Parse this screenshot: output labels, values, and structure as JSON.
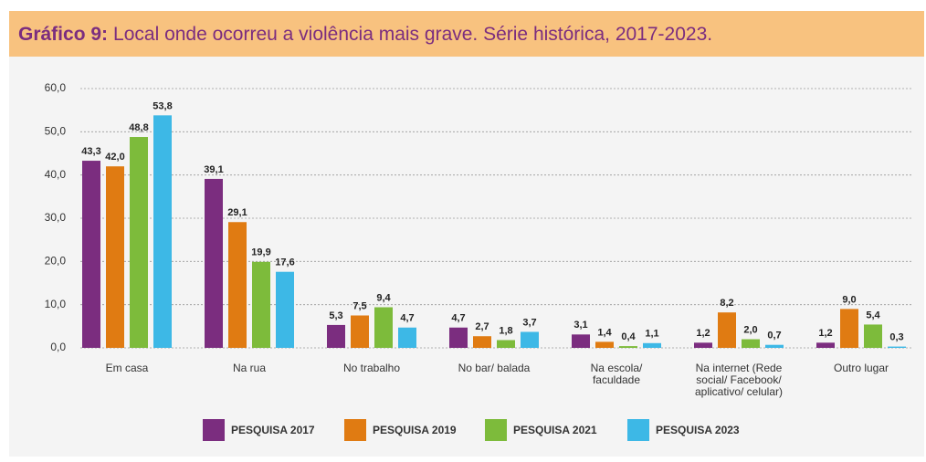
{
  "chart_data": {
    "type": "bar",
    "title_label": "Gráfico 9:",
    "title": "Local onde ocorreu a violência mais grave. Série histórica, 2017-2023.",
    "categories": [
      [
        "Em casa"
      ],
      [
        "Na rua"
      ],
      [
        "No trabalho"
      ],
      [
        "No bar/ balada"
      ],
      [
        "Na escola/",
        "faculdade"
      ],
      [
        "Na internet (Rede",
        "social/ Facebook/",
        "aplicativo/ celular)"
      ],
      [
        "Outro lugar"
      ]
    ],
    "series": [
      {
        "name": "PESQUISA 2017",
        "color": "#7b2d7f",
        "values": [
          43.3,
          39.1,
          5.3,
          4.7,
          3.1,
          1.2,
          1.2
        ],
        "value_labels": [
          "43,3",
          "39,1",
          "5,3",
          "4,7",
          "3,1",
          "1,2",
          "1,2"
        ]
      },
      {
        "name": "PESQUISA 2019",
        "color": "#e07b12",
        "values": [
          42.0,
          29.1,
          7.5,
          2.7,
          1.4,
          8.2,
          9.0
        ],
        "value_labels": [
          "42,0",
          "29,1",
          "7,5",
          "2,7",
          "1,4",
          "8,2",
          "9,0"
        ]
      },
      {
        "name": "PESQUISA 2021",
        "color": "#7dbb3b",
        "values": [
          48.8,
          19.9,
          9.4,
          1.8,
          0.4,
          2.0,
          5.4
        ],
        "value_labels": [
          "48,8",
          "19,9",
          "9,4",
          "1,8",
          "0,4",
          "2,0",
          "5,4"
        ]
      },
      {
        "name": "PESQUISA 2023",
        "color": "#3db8e6",
        "values": [
          53.8,
          17.6,
          4.7,
          3.7,
          1.1,
          0.7,
          0.3
        ],
        "value_labels": [
          "53,8",
          "17,6",
          "4,7",
          "3,7",
          "1,1",
          "0,7",
          "0,3"
        ]
      }
    ],
    "ylim": [
      0,
      60
    ],
    "yticks": [
      {
        "value": 0,
        "label": "0,0"
      },
      {
        "value": 10,
        "label": "10,0"
      },
      {
        "value": 20,
        "label": "20,0"
      },
      {
        "value": 30,
        "label": "30,0"
      },
      {
        "value": 40,
        "label": "40,0"
      },
      {
        "value": 50,
        "label": "50,0"
      },
      {
        "value": 60,
        "label": "60,0"
      }
    ],
    "grid": true
  }
}
